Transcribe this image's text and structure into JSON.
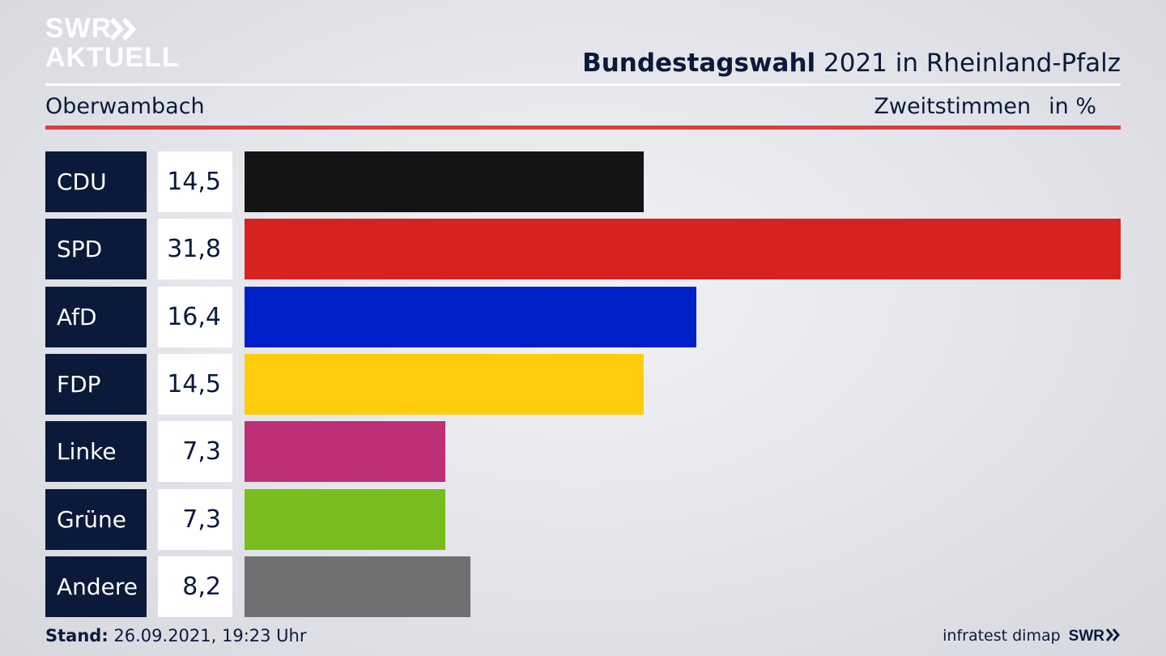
{
  "brand": {
    "logo_line1": "SWR",
    "logo_line2": "AKTUELL"
  },
  "header": {
    "title_bold": "Bundestagswahl",
    "title_rest": " 2021 in Rheinland-Pfalz",
    "region": "Oberwambach",
    "measure": "Zweitstimmen",
    "unit": "in %"
  },
  "chart_data": {
    "type": "bar",
    "orientation": "horizontal",
    "categories": [
      "CDU",
      "SPD",
      "AfD",
      "FDP",
      "Linke",
      "Grüne",
      "Andere"
    ],
    "values": [
      14.5,
      31.8,
      16.4,
      14.5,
      7.3,
      7.3,
      8.2
    ],
    "value_labels": [
      "14,5",
      "31,8",
      "16,4",
      "14,5",
      "7,3",
      "7,3",
      "8,2"
    ],
    "colors": [
      "#141414",
      "#d82121",
      "#0020c8",
      "#fecc0a",
      "#bd3075",
      "#78bd1d",
      "#707072"
    ],
    "ylabel": "in %"
  },
  "footer": {
    "stand_label": "Stand:",
    "stand_value": " 26.09.2021, 19:23 Uhr",
    "source": "infratest dimap",
    "brand": "SWR"
  }
}
